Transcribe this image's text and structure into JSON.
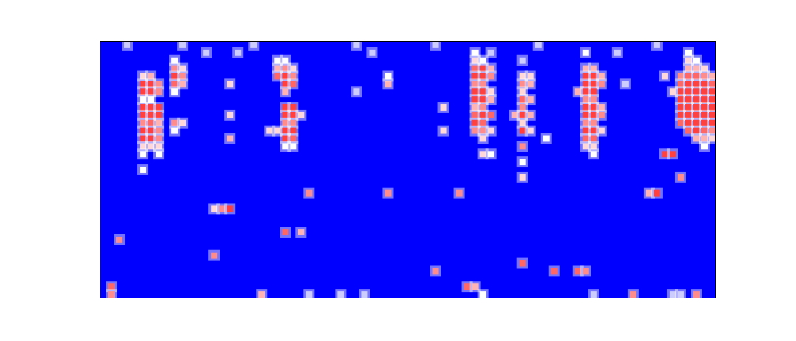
{
  "chart_data": {
    "type": "heatmap",
    "xlim": [
      0,
      78
    ],
    "ylim": [
      0,
      33
    ],
    "zlim": [
      0,
      1
    ],
    "grid": false,
    "tick_labels": false,
    "cells": [
      [
        5,
        28,
        0.6
      ],
      [
        6,
        28,
        0.7
      ],
      [
        5,
        27,
        1
      ],
      [
        6,
        27,
        1
      ],
      [
        7,
        27,
        0.8
      ],
      [
        5,
        26,
        1
      ],
      [
        6,
        26,
        1
      ],
      [
        7,
        26,
        0.8
      ],
      [
        5,
        25,
        0.5
      ],
      [
        6,
        25,
        0.5
      ],
      [
        5,
        24,
        1
      ],
      [
        6,
        24,
        1
      ],
      [
        7,
        24,
        1
      ],
      [
        5,
        23,
        1
      ],
      [
        6,
        23,
        1
      ],
      [
        7,
        23,
        1
      ],
      [
        5,
        22,
        0.8
      ],
      [
        6,
        22,
        0.9
      ],
      [
        7,
        22,
        0.7
      ],
      [
        5,
        21,
        1
      ],
      [
        6,
        21,
        1
      ],
      [
        7,
        21,
        0.8
      ],
      [
        5,
        20,
        1
      ],
      [
        6,
        20,
        1
      ],
      [
        7,
        20,
        0.8
      ],
      [
        5,
        19,
        0.6
      ],
      [
        6,
        19,
        0.6
      ],
      [
        7,
        19,
        0.6
      ],
      [
        5,
        18,
        0.5
      ],
      [
        7,
        18,
        0.5
      ],
      [
        5,
        16,
        0.5
      ],
      [
        9,
        30,
        0.5
      ],
      [
        9,
        29,
        0.8
      ],
      [
        10,
        29,
        0.6
      ],
      [
        9,
        28,
        1
      ],
      [
        10,
        28,
        0.8
      ],
      [
        9,
        27,
        0.9
      ],
      [
        10,
        27,
        0.7
      ],
      [
        9,
        26,
        0.5
      ],
      [
        9,
        22,
        0.8
      ],
      [
        10,
        22,
        0.6
      ],
      [
        9,
        21,
        0.5
      ],
      [
        22,
        30,
        0.5
      ],
      [
        23,
        30,
        0.5
      ],
      [
        22,
        29,
        0.7
      ],
      [
        23,
        29,
        0.8
      ],
      [
        24,
        29,
        0.6
      ],
      [
        22,
        28,
        0.9
      ],
      [
        23,
        28,
        1
      ],
      [
        24,
        28,
        0.8
      ],
      [
        23,
        27,
        1
      ],
      [
        24,
        27,
        0.9
      ],
      [
        23,
        26,
        0.7
      ],
      [
        23,
        24,
        1
      ],
      [
        24,
        24,
        1
      ],
      [
        23,
        23,
        1
      ],
      [
        24,
        23,
        1
      ],
      [
        25,
        23,
        0.6
      ],
      [
        23,
        22,
        0.8
      ],
      [
        24,
        22,
        0.8
      ],
      [
        21,
        21,
        0.6
      ],
      [
        22,
        21,
        0.6
      ],
      [
        23,
        21,
        1
      ],
      [
        24,
        21,
        1
      ],
      [
        23,
        20,
        1
      ],
      [
        24,
        20,
        0.9
      ],
      [
        23,
        19,
        0.5
      ],
      [
        24,
        19,
        0.5
      ],
      [
        47,
        31,
        0.5
      ],
      [
        49,
        31,
        0.4
      ],
      [
        47,
        30,
        0.6
      ],
      [
        48,
        30,
        0.5
      ],
      [
        47,
        29,
        0.9
      ],
      [
        48,
        29,
        1
      ],
      [
        49,
        29,
        0.7
      ],
      [
        47,
        28,
        1
      ],
      [
        48,
        28,
        1
      ],
      [
        49,
        28,
        0.8
      ],
      [
        47,
        27,
        0.8
      ],
      [
        48,
        27,
        0.8
      ],
      [
        47,
        26,
        1
      ],
      [
        48,
        26,
        1
      ],
      [
        49,
        26,
        0.6
      ],
      [
        47,
        25,
        1
      ],
      [
        48,
        25,
        1
      ],
      [
        49,
        25,
        0.7
      ],
      [
        47,
        24,
        0.7
      ],
      [
        48,
        24,
        0.8
      ],
      [
        47,
        23,
        0.9
      ],
      [
        48,
        23,
        1
      ],
      [
        49,
        23,
        0.9
      ],
      [
        47,
        22,
        1
      ],
      [
        48,
        22,
        0.9
      ],
      [
        47,
        21,
        0.8
      ],
      [
        48,
        21,
        0.8
      ],
      [
        49,
        21,
        0.6
      ],
      [
        48,
        20,
        0.6
      ],
      [
        48,
        18,
        0.6
      ],
      [
        49,
        18,
        0.5
      ],
      [
        53,
        30,
        0.4
      ],
      [
        53,
        28,
        0.6
      ],
      [
        54,
        28,
        0.6
      ],
      [
        53,
        27,
        0.8
      ],
      [
        54,
        27,
        0.7
      ],
      [
        53,
        26,
        0.6
      ],
      [
        53,
        25,
        0.9
      ],
      [
        54,
        25,
        0.7
      ],
      [
        53,
        24,
        0.8
      ],
      [
        52,
        23,
        0.7
      ],
      [
        53,
        23,
        1
      ],
      [
        54,
        23,
        0.7
      ],
      [
        53,
        22,
        0.6
      ],
      [
        53,
        21,
        1
      ],
      [
        54,
        21,
        0.6
      ],
      [
        53,
        19,
        0.8
      ],
      [
        53,
        17,
        0.5
      ],
      [
        61,
        31,
        0.5
      ],
      [
        61,
        29,
        0.7
      ],
      [
        62,
        29,
        0.7
      ],
      [
        61,
        28,
        1
      ],
      [
        62,
        28,
        1
      ],
      [
        63,
        28,
        0.7
      ],
      [
        61,
        27,
        1
      ],
      [
        62,
        27,
        1
      ],
      [
        63,
        27,
        0.8
      ],
      [
        60,
        26,
        0.7
      ],
      [
        61,
        26,
        1
      ],
      [
        62,
        26,
        1
      ],
      [
        61,
        25,
        0.8
      ],
      [
        62,
        25,
        0.8
      ],
      [
        61,
        24,
        1
      ],
      [
        62,
        24,
        1
      ],
      [
        63,
        24,
        0.7
      ],
      [
        61,
        23,
        1
      ],
      [
        62,
        23,
        1
      ],
      [
        63,
        23,
        0.8
      ],
      [
        61,
        22,
        0.8
      ],
      [
        62,
        22,
        0.8
      ],
      [
        61,
        21,
        1
      ],
      [
        62,
        21,
        1
      ],
      [
        63,
        21,
        0.6
      ],
      [
        61,
        20,
        0.9
      ],
      [
        62,
        20,
        0.9
      ],
      [
        61,
        19,
        0.6
      ],
      [
        62,
        19,
        0.6
      ],
      [
        62,
        18,
        0.5
      ],
      [
        74,
        31,
        0.5
      ],
      [
        74,
        30,
        0.6
      ],
      [
        75,
        30,
        0.5
      ],
      [
        74,
        29,
        0.7
      ],
      [
        75,
        29,
        0.7
      ],
      [
        76,
        29,
        0.6
      ],
      [
        73,
        28,
        0.8
      ],
      [
        74,
        28,
        0.9
      ],
      [
        75,
        28,
        0.9
      ],
      [
        76,
        28,
        0.8
      ],
      [
        77,
        28,
        0.7
      ],
      [
        73,
        27,
        0.9
      ],
      [
        74,
        27,
        1
      ],
      [
        75,
        27,
        1
      ],
      [
        76,
        27,
        1
      ],
      [
        77,
        27,
        0.9
      ],
      [
        73,
        26,
        1
      ],
      [
        74,
        26,
        1
      ],
      [
        75,
        26,
        1
      ],
      [
        76,
        26,
        1
      ],
      [
        77,
        26,
        1
      ],
      [
        73,
        25,
        1
      ],
      [
        74,
        25,
        1
      ],
      [
        75,
        25,
        1
      ],
      [
        76,
        25,
        1
      ],
      [
        77,
        25,
        1
      ],
      [
        73,
        24,
        1
      ],
      [
        74,
        24,
        1
      ],
      [
        75,
        24,
        1
      ],
      [
        76,
        24,
        1
      ],
      [
        77,
        24,
        1
      ],
      [
        73,
        23,
        1
      ],
      [
        74,
        23,
        1
      ],
      [
        75,
        23,
        1
      ],
      [
        76,
        23,
        1
      ],
      [
        77,
        23,
        1
      ],
      [
        73,
        22,
        0.9
      ],
      [
        74,
        22,
        1
      ],
      [
        75,
        22,
        1
      ],
      [
        76,
        22,
        1
      ],
      [
        77,
        22,
        1
      ],
      [
        74,
        21,
        0.9
      ],
      [
        75,
        21,
        1
      ],
      [
        76,
        21,
        0.9
      ],
      [
        77,
        21,
        0.8
      ],
      [
        75,
        20,
        0.7
      ],
      [
        76,
        20,
        0.7
      ],
      [
        77,
        20,
        0.6
      ],
      [
        76,
        19,
        0.5
      ],
      [
        71,
        18,
        1
      ],
      [
        72,
        18,
        1
      ],
      [
        73,
        15,
        0.8
      ],
      [
        69,
        13,
        0.7
      ],
      [
        70,
        13,
        1
      ],
      [
        71,
        28,
        0.6
      ],
      [
        72,
        26,
        0.6
      ],
      [
        66,
        27,
        0.4
      ],
      [
        14,
        11,
        0.6
      ],
      [
        15,
        11,
        0.8
      ],
      [
        16,
        11,
        1
      ],
      [
        2,
        7,
        0.8
      ],
      [
        1,
        1,
        0.9
      ],
      [
        1,
        0,
        0.8
      ],
      [
        14,
        5,
        0.8
      ],
      [
        23,
        8,
        0.9
      ],
      [
        25,
        8,
        0.7
      ],
      [
        26,
        13,
        0.8
      ],
      [
        36,
        13,
        0.8
      ],
      [
        45,
        13,
        0.8
      ],
      [
        53,
        15,
        0.6
      ],
      [
        42,
        3,
        0.8
      ],
      [
        46,
        1,
        0.9
      ],
      [
        47,
        1,
        0.7
      ],
      [
        53,
        4,
        0.9
      ],
      [
        57,
        3,
        0.9
      ],
      [
        60,
        3,
        0.9
      ],
      [
        61,
        3,
        0.8
      ],
      [
        67,
        0,
        0.8
      ],
      [
        75,
        0,
        0.8
      ],
      [
        20,
        0,
        0.7
      ],
      [
        16,
        20,
        0.7
      ],
      [
        16,
        23,
        0.6
      ],
      [
        16,
        27,
        0.6
      ],
      [
        36,
        27,
        0.7
      ],
      [
        36,
        28,
        0.5
      ],
      [
        32,
        26,
        0.4
      ],
      [
        43,
        24,
        0.6
      ],
      [
        43,
        21,
        0.6
      ],
      [
        56,
        20,
        0.5
      ],
      [
        3,
        32,
        0.4
      ],
      [
        10,
        32,
        0.4
      ],
      [
        13,
        31,
        0.4
      ],
      [
        17,
        31,
        0.4
      ],
      [
        19,
        32,
        0.4
      ],
      [
        32,
        32,
        0.4
      ],
      [
        34,
        31,
        0.4
      ],
      [
        42,
        32,
        0.4
      ],
      [
        55,
        32,
        0.4
      ],
      [
        65,
        31,
        0.4
      ],
      [
        70,
        32,
        0.4
      ],
      [
        26,
        0,
        0.4
      ],
      [
        30,
        0,
        0.4
      ],
      [
        33,
        0,
        0.4
      ],
      [
        48,
        0,
        0.5
      ],
      [
        62,
        0,
        0.4
      ],
      [
        72,
        0,
        0.4
      ],
      [
        73,
        0,
        0.4
      ]
    ]
  }
}
